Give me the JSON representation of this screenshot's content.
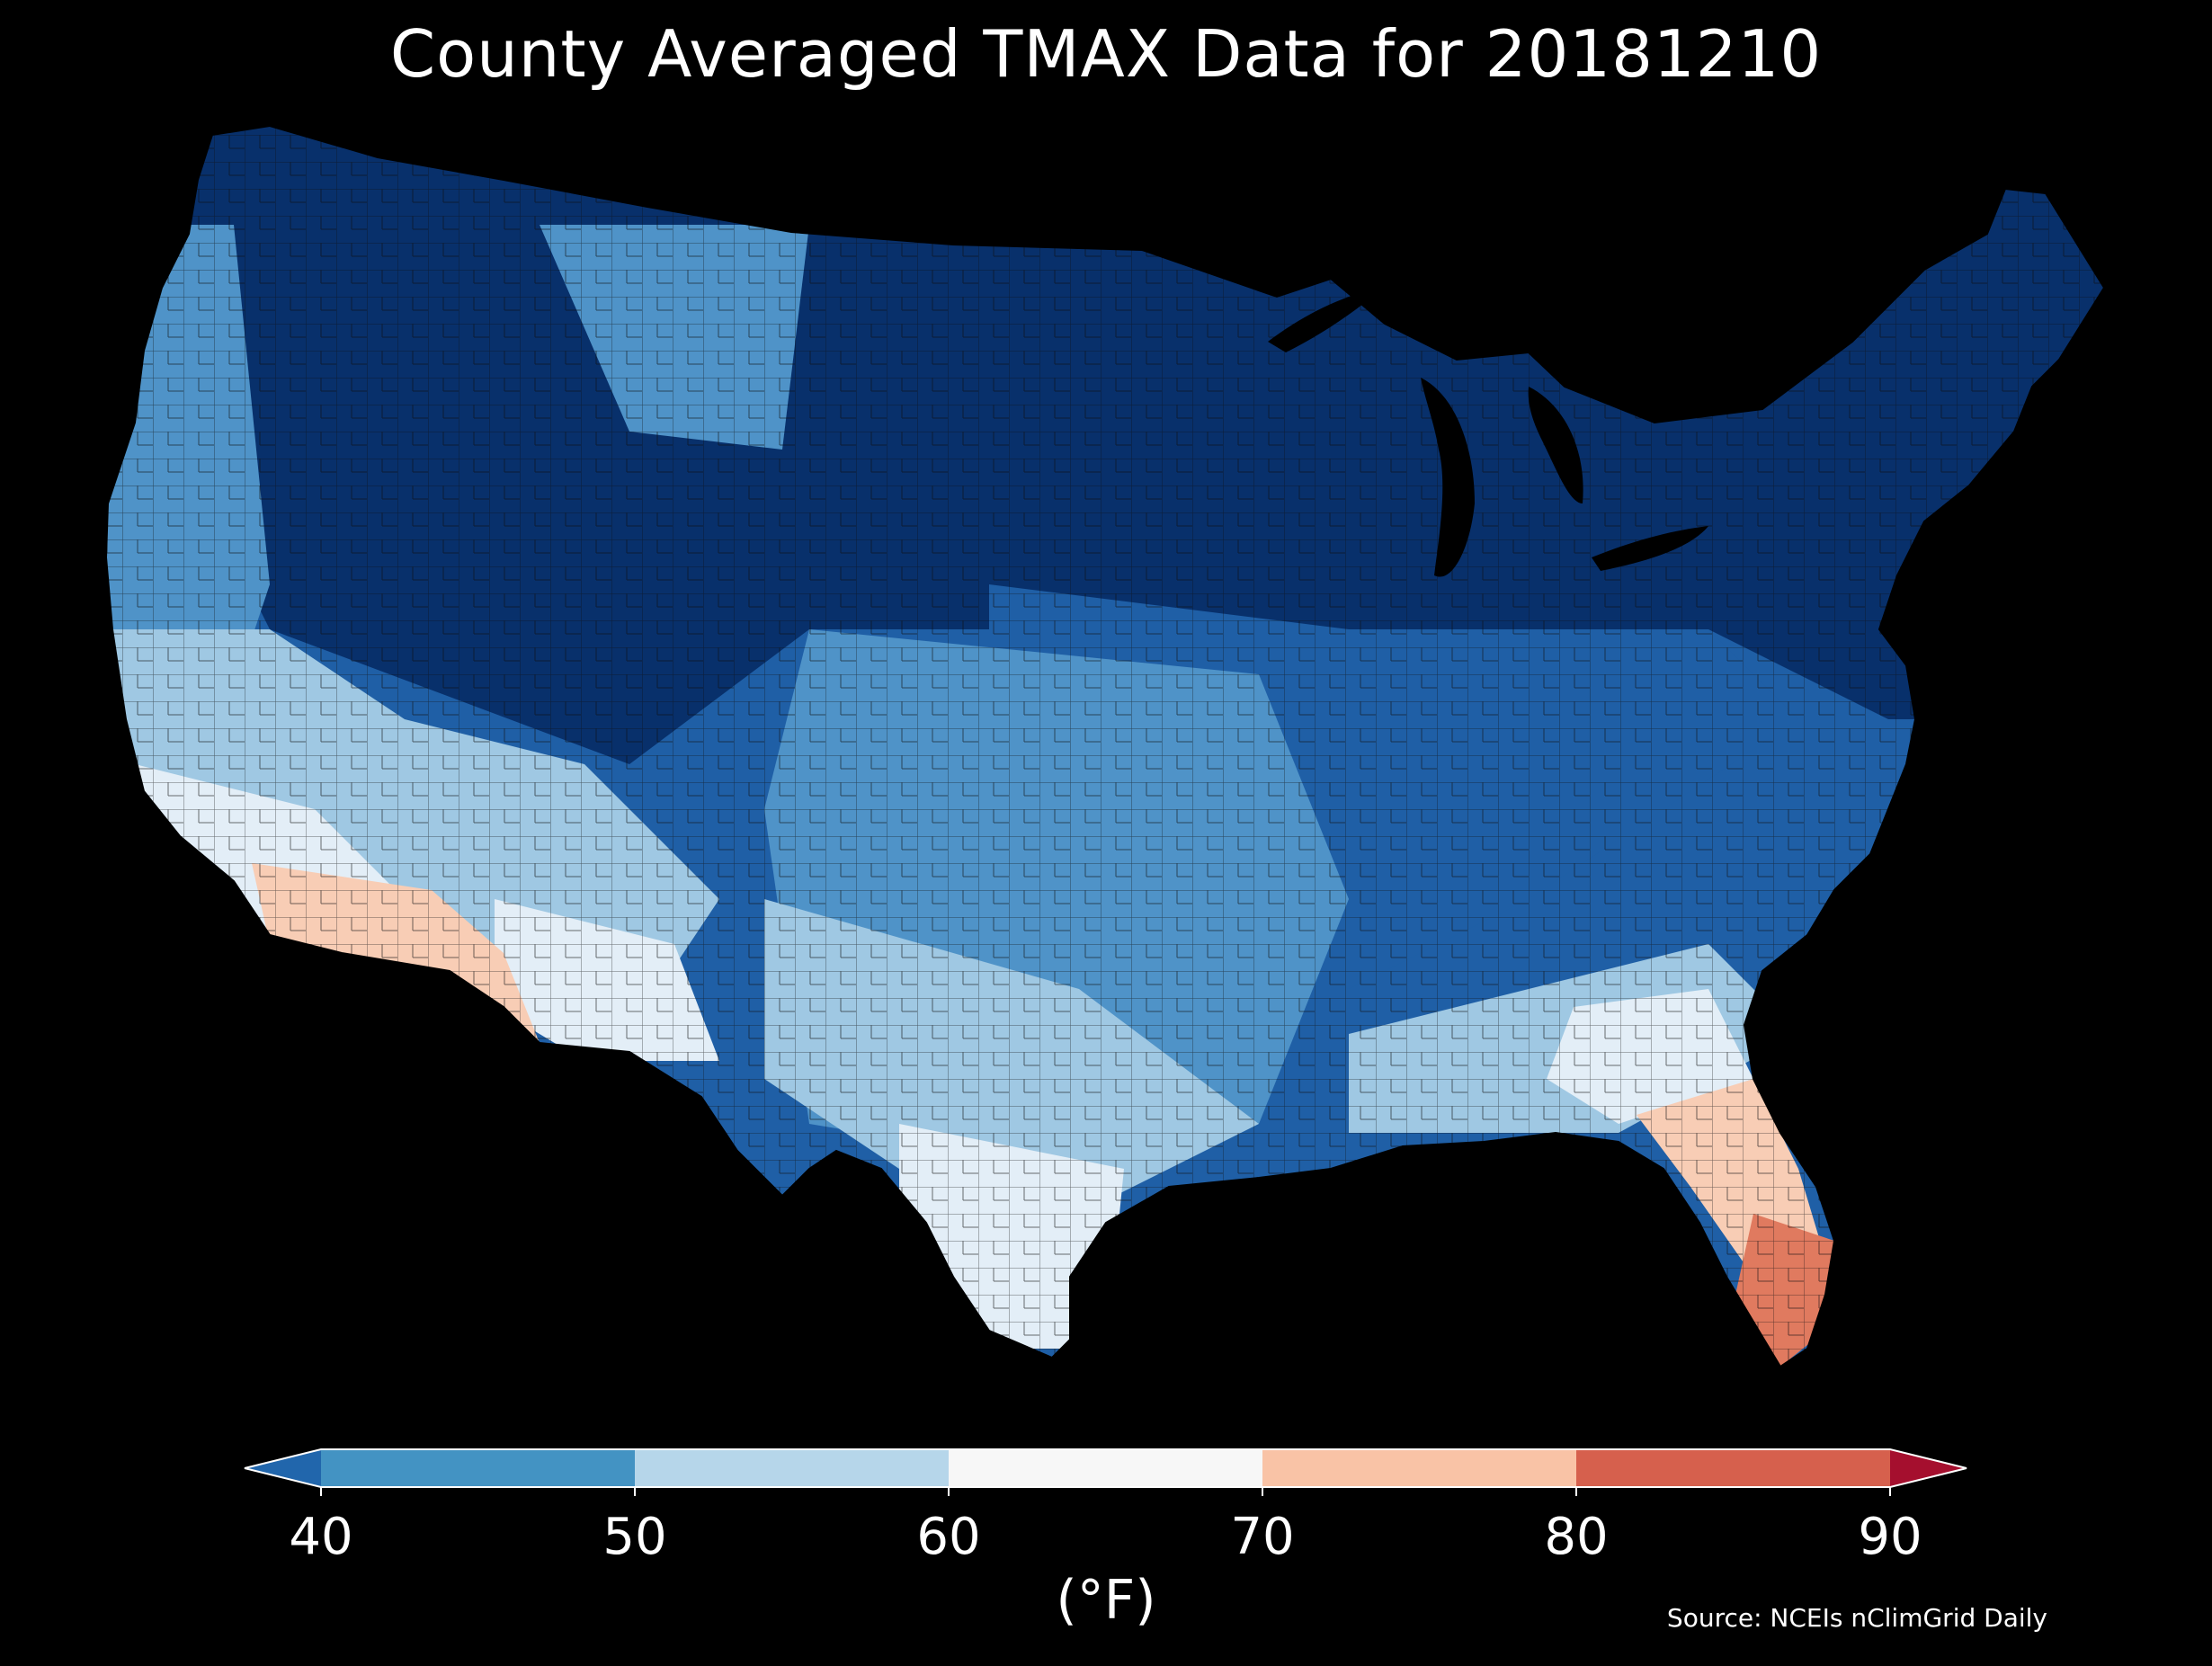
{
  "title": "County Averaged TMAX Data for 20181210",
  "colorbar": {
    "unit": "(°F)",
    "ticks": [
      "40",
      "50",
      "60",
      "70",
      "80",
      "90"
    ],
    "bins": [
      {
        "from": 40,
        "to": 50,
        "color": "#4393c3"
      },
      {
        "from": 50,
        "to": 60,
        "color": "#b6d6ea"
      },
      {
        "from": 60,
        "to": 70,
        "color": "#f7f7f7"
      },
      {
        "from": 70,
        "to": 80,
        "color": "#f9c3a6"
      },
      {
        "from": 80,
        "to": 90,
        "color": "#d6604d"
      }
    ],
    "under_color": "#2166ac",
    "over_color": "#a50f2e"
  },
  "source": "Source: NCEIs nClimGrid Daily",
  "palette": {
    "very_cold": "#08306b",
    "cold": "#1f5fa6",
    "cool": "#4f93c8",
    "mild": "#9fc8e3",
    "neutral": "#e3eef7",
    "warm": "#f8cdb5",
    "hot": "#e07a5f",
    "background": "#000000",
    "county_edge": "#111111"
  }
}
